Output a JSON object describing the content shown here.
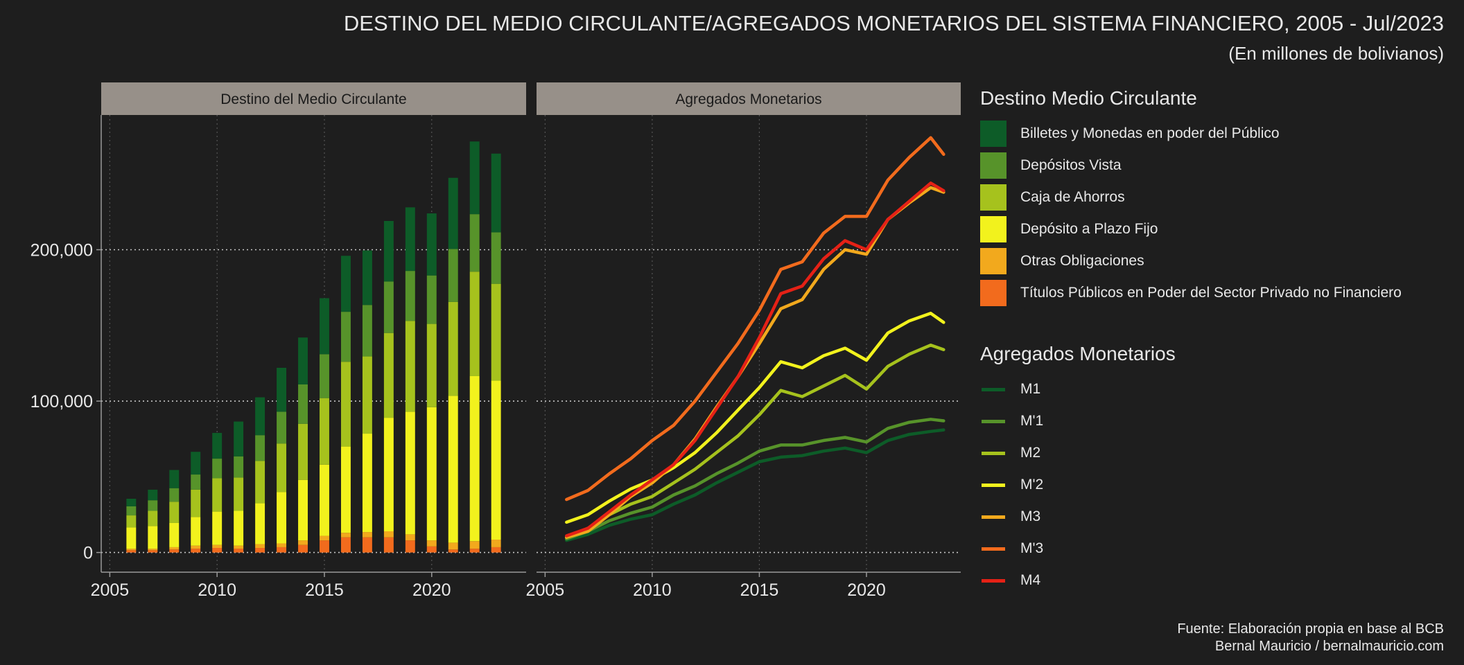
{
  "title": "DESTINO DEL MEDIO CIRCULANTE/AGREGADOS MONETARIOS DEL SISTEMA FINANCIERO, 2005 - Jul/2023",
  "subtitle": "(En millones de bolivianos)",
  "caption": [
    "Fuente: Elaboración propia en base al BCB",
    "Bernal Mauricio / bernalmauricio.com"
  ],
  "panels": [
    "Destino del Medio Circulante",
    "Agregados Monetarios"
  ],
  "y_ticks": [
    "0",
    "100,000",
    "200,000"
  ],
  "x_ticks": [
    "2005",
    "2010",
    "2015",
    "2020"
  ],
  "legend_stack_title": "Destino Medio Circulante",
  "legend_lines_title": "Agregados Monetarios",
  "colors": {
    "background": "#1e1e1e",
    "strip": "#979089",
    "grid": "#8a8a8a",
    "axis": "#9a9a9a",
    "text": "#e8e8e8"
  },
  "chart_data": [
    {
      "type": "bar",
      "stacked": true,
      "panel": "Destino del Medio Circulante",
      "x": [
        2006,
        2007,
        2008,
        2009,
        2010,
        2011,
        2012,
        2013,
        2014,
        2015,
        2016,
        2017,
        2018,
        2019,
        2020,
        2021,
        2022,
        2023
      ],
      "xlim": [
        2004.6,
        2024.4
      ],
      "ylim": [
        -13000,
        289000
      ],
      "grid": true,
      "series": [
        {
          "name": "Títulos Públicos en Poder del Sector Privado no Financiero",
          "color": "#f26b1d",
          "values": [
            1500,
            1500,
            2000,
            2500,
            3000,
            2500,
            3000,
            3500,
            5000,
            8000,
            10000,
            10000,
            10000,
            8000,
            4000,
            2000,
            2500,
            3500
          ]
        },
        {
          "name": "Otras Obligaciones",
          "color": "#f2a91d",
          "values": [
            1000,
            1000,
            1500,
            2000,
            2000,
            2000,
            2500,
            2500,
            3000,
            3000,
            3000,
            3500,
            4000,
            4000,
            4000,
            4500,
            5000,
            5000
          ]
        },
        {
          "name": "Depósito a Plazo Fijo",
          "color": "#f2f21d",
          "values": [
            14000,
            15000,
            16000,
            19000,
            22000,
            23000,
            27000,
            34000,
            40000,
            47000,
            57000,
            65000,
            75000,
            81000,
            88000,
            97000,
            109000,
            105000
          ]
        },
        {
          "name": "Caja de Ahorros",
          "color": "#a6c21d",
          "values": [
            8000,
            10000,
            14000,
            18000,
            22000,
            22000,
            28000,
            32000,
            37000,
            44000,
            56000,
            51000,
            56000,
            60000,
            55000,
            62000,
            69000,
            64000
          ]
        },
        {
          "name": "Depósitos Vista",
          "color": "#57932a",
          "values": [
            6000,
            7000,
            9000,
            10000,
            13000,
            14000,
            17000,
            21000,
            26000,
            29000,
            33000,
            34000,
            34000,
            33000,
            32000,
            35000,
            38000,
            34000
          ]
        },
        {
          "name": "Billetes y Monedas en poder del Público",
          "color": "#0d5c28",
          "values": [
            5000,
            7000,
            12000,
            15000,
            17000,
            23000,
            25000,
            29000,
            31000,
            37000,
            37000,
            36000,
            40000,
            42000,
            41000,
            47000,
            48000,
            52000
          ]
        }
      ]
    },
    {
      "type": "line",
      "panel": "Agregados Monetarios",
      "x": [
        2006,
        2007,
        2008,
        2009,
        2010,
        2011,
        2012,
        2013,
        2014,
        2015,
        2016,
        2017,
        2018,
        2019,
        2020,
        2021,
        2022,
        2023,
        2023.6
      ],
      "xlim": [
        2004.6,
        2024.4
      ],
      "ylim": [
        -13000,
        289000
      ],
      "grid": true,
      "series": [
        {
          "name": "M1",
          "color": "#0d5c28",
          "values": [
            8000,
            12000,
            18000,
            22000,
            25000,
            32000,
            38000,
            46000,
            53000,
            60000,
            63000,
            64000,
            67000,
            69000,
            66000,
            74000,
            78000,
            80000,
            81000
          ]
        },
        {
          "name": "M'1",
          "color": "#57932a",
          "values": [
            9000,
            14000,
            21000,
            26000,
            30000,
            38000,
            44000,
            52000,
            59000,
            67000,
            71000,
            71000,
            74000,
            76000,
            73000,
            82000,
            86000,
            88000,
            87000
          ]
        },
        {
          "name": "M2",
          "color": "#a6c21d",
          "values": [
            10000,
            16000,
            25000,
            32000,
            37000,
            46000,
            55000,
            66000,
            77000,
            91000,
            107000,
            103000,
            110000,
            117000,
            108000,
            123000,
            131000,
            137000,
            134000
          ]
        },
        {
          "name": "M'2",
          "color": "#f2f21d",
          "values": [
            20000,
            25000,
            34000,
            42000,
            48000,
            56000,
            66000,
            79000,
            94000,
            109000,
            126000,
            122000,
            130000,
            135000,
            127000,
            145000,
            153000,
            158000,
            152000
          ]
        },
        {
          "name": "M3",
          "color": "#f2a91d",
          "values": [
            10000,
            14000,
            25000,
            37000,
            46000,
            58000,
            75000,
            96000,
            116000,
            138000,
            161000,
            167000,
            187000,
            200000,
            197000,
            220000,
            231000,
            241000,
            238000
          ]
        },
        {
          "name": "M'3",
          "color": "#f26b1d",
          "values": [
            35000,
            41000,
            52000,
            62000,
            74000,
            84000,
            100000,
            119000,
            138000,
            160000,
            187000,
            192000,
            211000,
            222000,
            222000,
            246000,
            261000,
            274000,
            263000
          ]
        },
        {
          "name": "M4",
          "color": "#e52116",
          "values": [
            11000,
            16000,
            27000,
            38000,
            48000,
            58000,
            74000,
            95000,
            116000,
            142000,
            171000,
            176000,
            194000,
            206000,
            200000,
            220000,
            232000,
            244000,
            239000
          ]
        }
      ]
    }
  ]
}
